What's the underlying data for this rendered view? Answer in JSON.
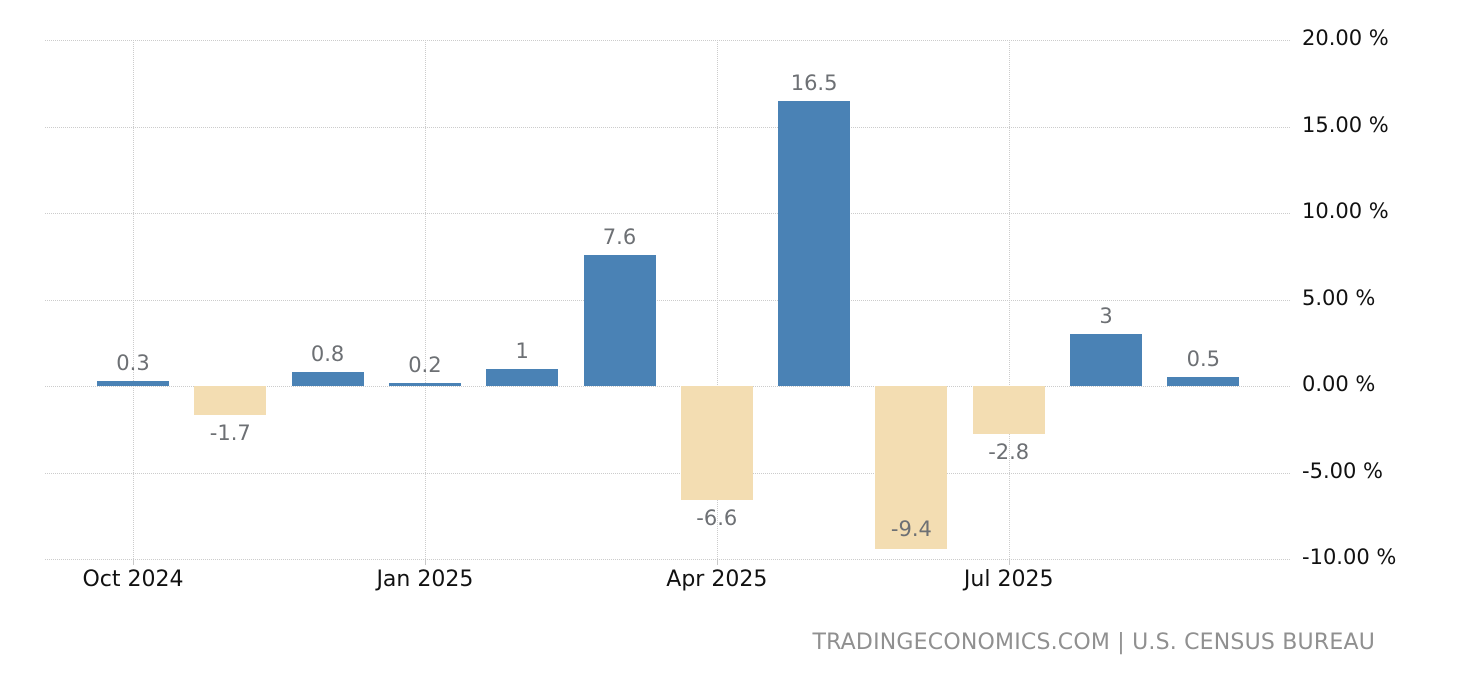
{
  "chart_data": {
    "type": "bar",
    "title": "",
    "xlabel": "",
    "ylabel": "",
    "values": [
      0.3,
      -1.7,
      0.8,
      0.2,
      1,
      7.6,
      -6.6,
      16.5,
      -9.4,
      -2.8,
      3,
      0.5
    ],
    "bar_labels": [
      "0.3",
      "-1.7",
      "0.8",
      "0.2",
      "1",
      "7.6",
      "-6.6",
      "16.5",
      "-9.4",
      "-2.8",
      "3",
      "0.5"
    ],
    "x_ticks": [
      {
        "index": 0,
        "label": "Oct 2024"
      },
      {
        "index": 3,
        "label": "Jan 2025"
      },
      {
        "index": 6,
        "label": "Apr 2025"
      },
      {
        "index": 9,
        "label": "Jul 2025"
      }
    ],
    "y_ticks": [
      {
        "value": 20,
        "label": "20.00 %"
      },
      {
        "value": 15,
        "label": "15.00 %"
      },
      {
        "value": 10,
        "label": "10.00 %"
      },
      {
        "value": 5,
        "label": "5.00 %"
      },
      {
        "value": 0,
        "label": "0.00 %"
      },
      {
        "value": -5,
        "label": "-5.00 %"
      },
      {
        "value": -10,
        "label": "-10.00 %"
      }
    ],
    "ylim": [
      -10,
      20
    ],
    "grid": "dotted",
    "legend_position": "none",
    "colors": {
      "positive_bar": "#4a82b5",
      "negative_bar": "#f3ddb2",
      "value_label": "#6d7074",
      "axis_label": "#111111",
      "gridline": "#cccccc",
      "attribution_text": "#909090",
      "background": "#ffffff"
    }
  },
  "footer": {
    "attribution": "TRADINGECONOMICS.COM | U.S. CENSUS BUREAU"
  }
}
